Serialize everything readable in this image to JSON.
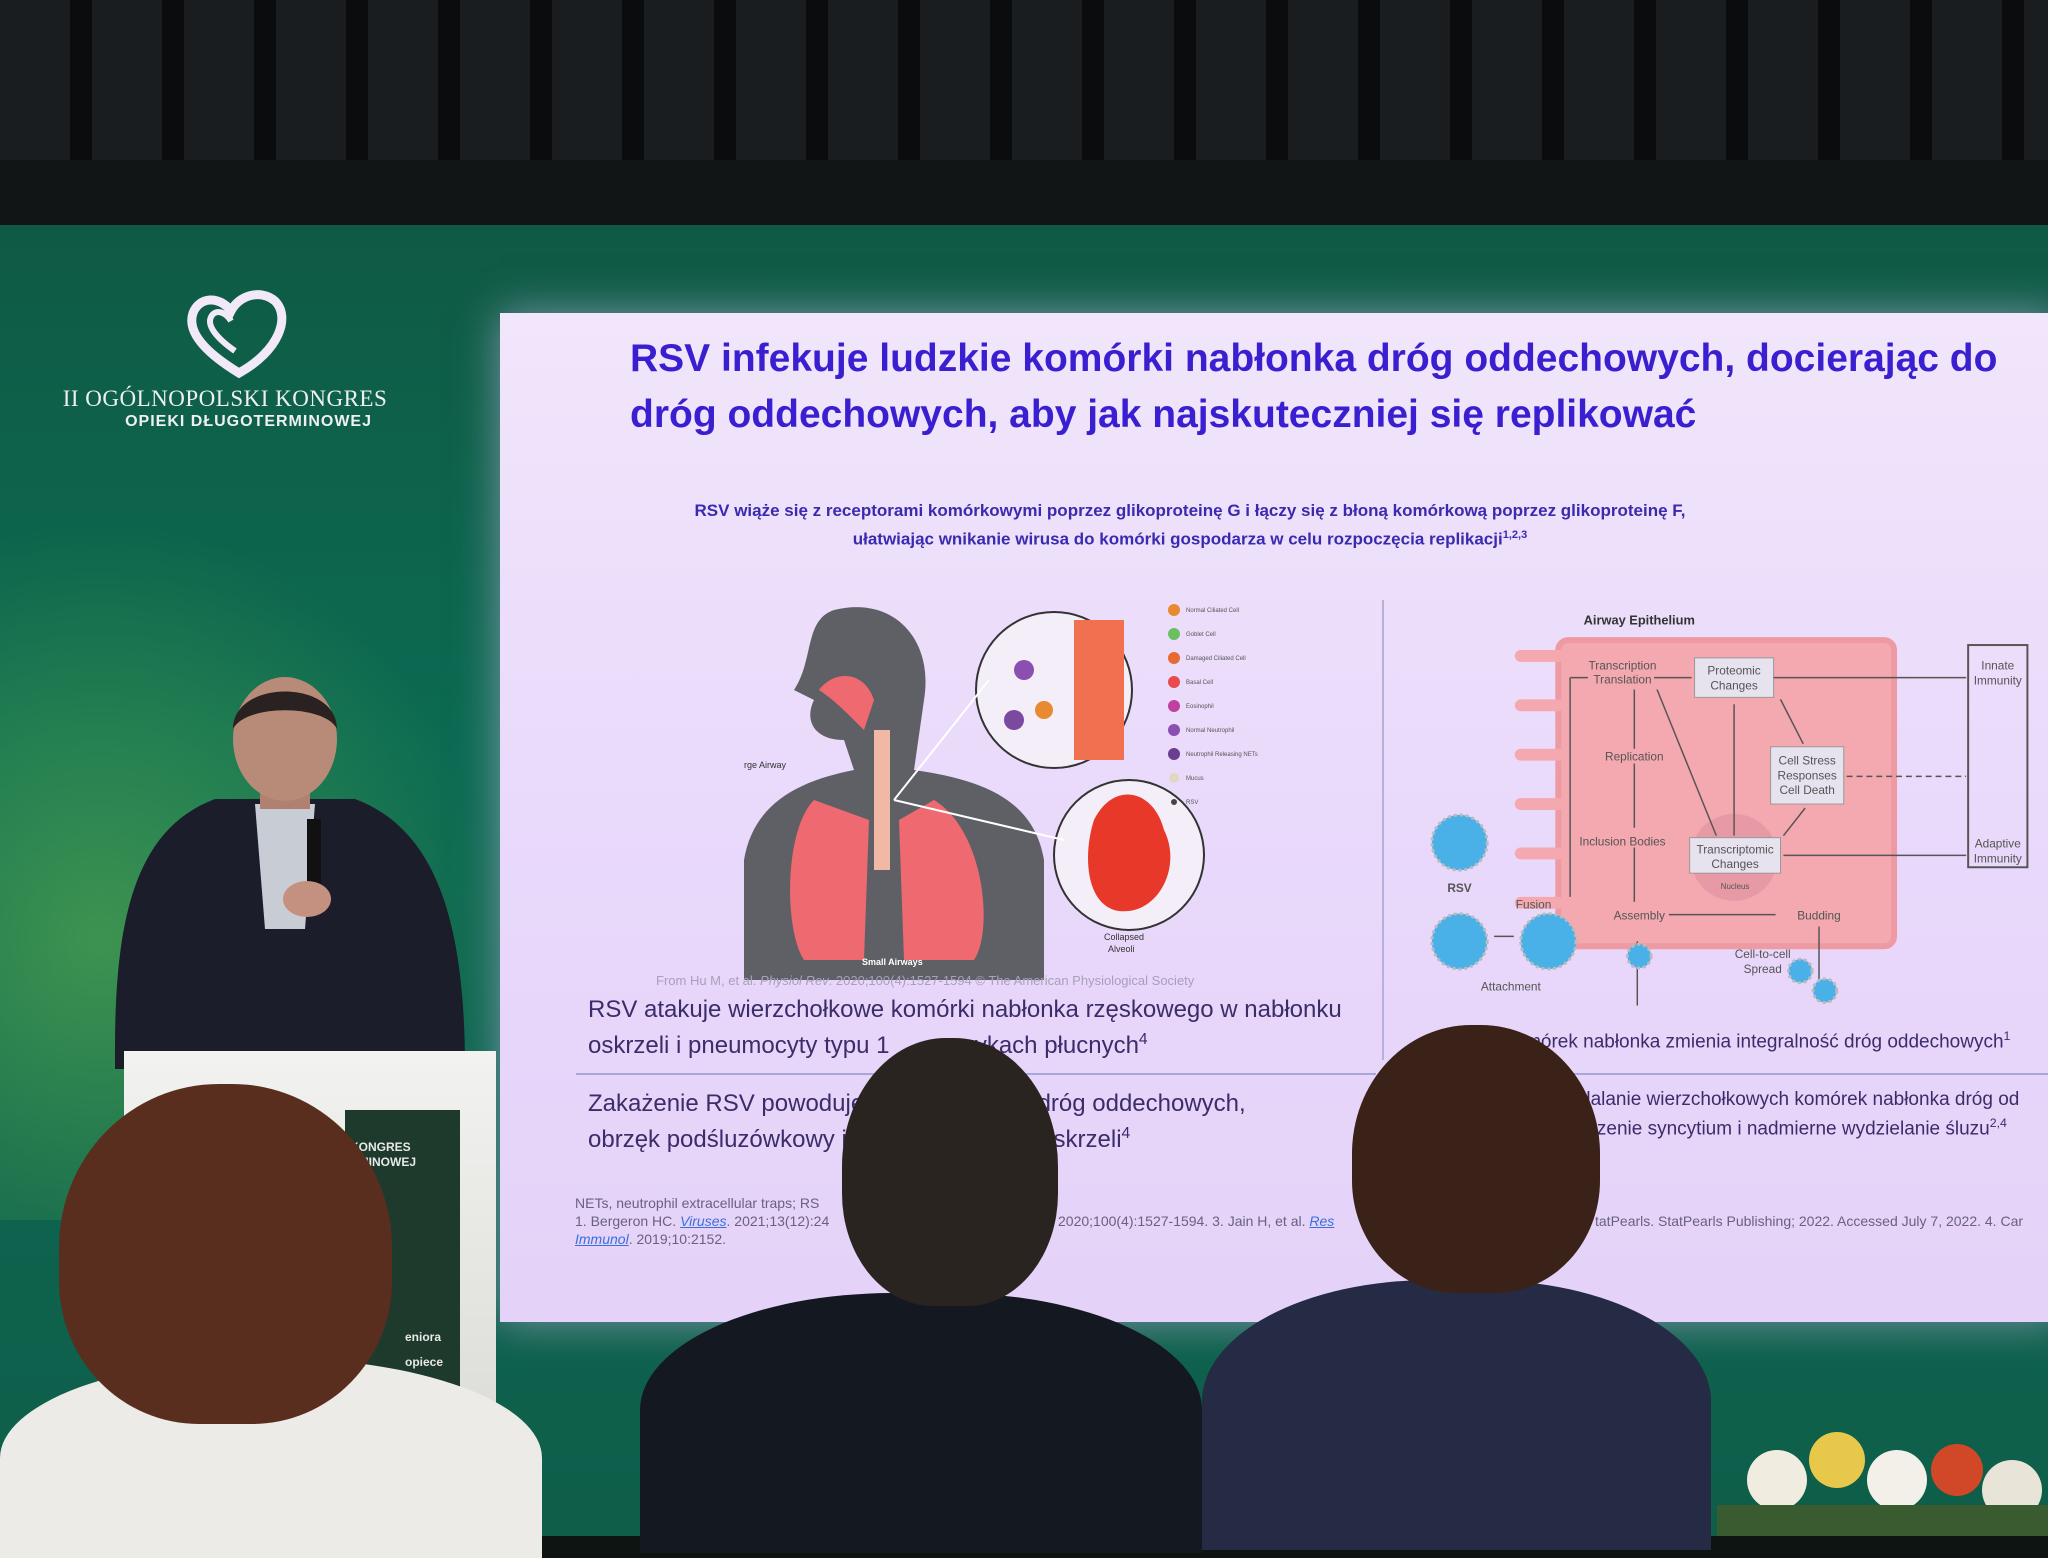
{
  "event": {
    "logo_line1": "II OGÓLNOPOLSKI KONGRES",
    "logo_line2": "OPIEKI DŁUGOTERMINOWEJ",
    "podium_line1": "KONGRES",
    "podium_line2": "RMINOWEJ",
    "podium_line3": "eniora",
    "podium_line4": "opiece"
  },
  "slide": {
    "title_line1": "RSV infekuje ludzkie komórki nabłonka dróg oddechowych, docierając do",
    "title_line2": "dróg oddechowych, aby jak najskuteczniej się replikować",
    "subtitle_line1": "RSV wiąże się z receptorami komórkowymi poprzez glikoproteinę G i łączy się z błoną komórkową poprzez glikoproteinę F,",
    "subtitle_line2": "ułatwiając wnikanie wirusa do komórki gospodarza w celu rozpoczęcia replikacji",
    "subtitle_sup": "1,2,3",
    "left_figure": {
      "labels": {
        "large_airway": "Large Airway",
        "small_airways": "Small Airways",
        "collapsed": "Collapsed",
        "alveoli": "Alveoli"
      },
      "legend": [
        "Normal Ciliated Cell",
        "Goblet Cell",
        "Damaged Ciliated Cell",
        "Basal Cell",
        "Eosinophil",
        "Normal Neutrophil",
        "Neutrophil Releasing NETs",
        "Mucus",
        "RSV"
      ],
      "credit_prefix": "From Hu M, et al. ",
      "credit_journal": "Physiol Rev",
      "credit_suffix": ". 2020;100(4):1527-1594 © The American Physiological Society"
    },
    "right_figure": {
      "title": "Airway Epithelium",
      "transcription": "Transcription",
      "translation": "Translation",
      "proteomic1": "Proteomic",
      "proteomic2": "Changes",
      "stress1": "Cell Stress",
      "stress2": "Responses",
      "stress3": "Cell Death",
      "replication": "Replication",
      "inclusion": "Inclusion Bodies",
      "transcriptomic1": "Transcriptomic",
      "transcriptomic2": "Changes",
      "nucleus": "Nucleus",
      "innate1": "Innate",
      "innate2": "Immunity",
      "adaptive1": "Adaptive",
      "adaptive2": "Immunity",
      "rsv": "RSV",
      "fusion": "Fusion",
      "attachment": "Attachment",
      "assembly": "Assembly",
      "budding": "Budding",
      "spread1": "Cell-to-cell",
      "spread2": "Spread"
    },
    "bullets_left": [
      {
        "line1": "RSV atakuje wierzchołkowe komórki nabłonka rzęskowego w nabłonku",
        "line2": "oskrzeli i pneumocyty typu 1 ",
        "line2b": "zykach płucnych",
        "sup": "4"
      },
      {
        "line1": "Zakażenie RSV powoduje",
        "line1b": "a dróg oddechowych,",
        "line2": "obrzęk podśluzówkowy i",
        "line2b": "a oskrzeli",
        "sup": "4"
      }
    ],
    "bullets_right": [
      {
        "line1": "komórek nabłonka zmienia integralność dróg oddechowych",
        "sup": "1"
      },
      {
        "line1": "dalanie wierzchołkowych komórek nabłonka dróg od",
        "line2": "orzenie syncytium i nadmierne wydzielanie śluzu",
        "sup": "2,4"
      }
    ],
    "references": {
      "line1": "NETs, neutrophil extracellular traps; RS",
      "line2a": "1. Bergeron HC. ",
      "line2_link": "Viruses",
      "line2b": ". 2021;13(12):24",
      "line2c": "2020;100(4):1527-1594. 3. Jain H, et al. ",
      "line2_link2": "Res",
      "line2d": "tatPearls. StatPearls Publishing; 2022. Accessed July 7, 2022. 4. Car",
      "line3_link": "Immunol",
      "line3b": ". 2019;10:2152."
    }
  },
  "colors": {
    "title": "#3a1fd0",
    "slide_bg": "#ebdcfa",
    "wall": "#0c6b52",
    "cell": "#f4a5ad"
  }
}
